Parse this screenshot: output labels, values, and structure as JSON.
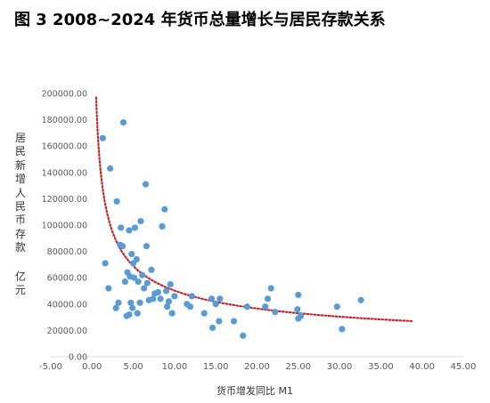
{
  "title": "图 3 2008~2024 年货币总量增长与居民存款关系",
  "chart_data": {
    "type": "scatter",
    "title": "图 3 2008~2024 年货币总量增长与居民存款关系",
    "xlabel": "货币增发同比 M1",
    "ylabel_parts": [
      "居民新增人民币存款",
      "亿元"
    ],
    "xlim": [
      -5,
      45
    ],
    "ylim": [
      0,
      200000
    ],
    "x_ticks": [
      "-5.00",
      "0.00",
      "5.00",
      "10.00",
      "15.00",
      "20.00",
      "25.00",
      "30.00",
      "35.00",
      "40.00",
      "45.00"
    ],
    "y_ticks": [
      "0.00",
      "20000.00",
      "40000.00",
      "60000.00",
      "80000.00",
      "100000.00",
      "120000.00",
      "140000.00",
      "160000.00",
      "180000.00",
      "200000.00"
    ],
    "grid": false,
    "legend": "none",
    "point_color": "#5b9bd5",
    "trend_color": "#c0282d",
    "trendline": {
      "type": "power",
      "style": "dotted",
      "x_range": [
        0.5,
        39
      ],
      "y_at_0_5": 197000,
      "y_at_39": 27000
    },
    "points": [
      {
        "x": 1.3,
        "y": 166000
      },
      {
        "x": 1.6,
        "y": 71000
      },
      {
        "x": 2.0,
        "y": 52000
      },
      {
        "x": 2.2,
        "y": 143000
      },
      {
        "x": 2.9,
        "y": 37000
      },
      {
        "x": 3.0,
        "y": 118000
      },
      {
        "x": 3.2,
        "y": 41000
      },
      {
        "x": 3.4,
        "y": 85000
      },
      {
        "x": 3.5,
        "y": 98000
      },
      {
        "x": 3.7,
        "y": 84000
      },
      {
        "x": 3.8,
        "y": 178000
      },
      {
        "x": 4.0,
        "y": 57000
      },
      {
        "x": 4.2,
        "y": 31000
      },
      {
        "x": 4.3,
        "y": 64000
      },
      {
        "x": 4.5,
        "y": 96000
      },
      {
        "x": 4.5,
        "y": 32000
      },
      {
        "x": 4.6,
        "y": 61000
      },
      {
        "x": 4.7,
        "y": 41000
      },
      {
        "x": 4.8,
        "y": 78000
      },
      {
        "x": 4.9,
        "y": 37000
      },
      {
        "x": 5.0,
        "y": 71000
      },
      {
        "x": 5.1,
        "y": 60000
      },
      {
        "x": 5.2,
        "y": 98000
      },
      {
        "x": 5.4,
        "y": 74000
      },
      {
        "x": 5.5,
        "y": 33000
      },
      {
        "x": 5.6,
        "y": 57000
      },
      {
        "x": 5.8,
        "y": 41000
      },
      {
        "x": 5.9,
        "y": 103000
      },
      {
        "x": 6.1,
        "y": 62000
      },
      {
        "x": 6.3,
        "y": 52000
      },
      {
        "x": 6.5,
        "y": 131000
      },
      {
        "x": 6.6,
        "y": 84000
      },
      {
        "x": 6.7,
        "y": 56000
      },
      {
        "x": 6.9,
        "y": 43000
      },
      {
        "x": 7.2,
        "y": 66000
      },
      {
        "x": 7.4,
        "y": 44000
      },
      {
        "x": 7.6,
        "y": 48000
      },
      {
        "x": 8.0,
        "y": 49000
      },
      {
        "x": 8.3,
        "y": 44000
      },
      {
        "x": 8.5,
        "y": 99000
      },
      {
        "x": 8.8,
        "y": 112000
      },
      {
        "x": 9.0,
        "y": 50000
      },
      {
        "x": 9.1,
        "y": 38000
      },
      {
        "x": 9.3,
        "y": 42000
      },
      {
        "x": 9.5,
        "y": 55000
      },
      {
        "x": 9.7,
        "y": 33000
      },
      {
        "x": 10.0,
        "y": 46000
      },
      {
        "x": 11.5,
        "y": 40000
      },
      {
        "x": 11.9,
        "y": 38000
      },
      {
        "x": 12.1,
        "y": 46000
      },
      {
        "x": 13.6,
        "y": 33000
      },
      {
        "x": 14.5,
        "y": 44000
      },
      {
        "x": 14.6,
        "y": 22000
      },
      {
        "x": 15.0,
        "y": 40000
      },
      {
        "x": 15.4,
        "y": 27000
      },
      {
        "x": 15.5,
        "y": 44000
      },
      {
        "x": 17.2,
        "y": 27000
      },
      {
        "x": 18.3,
        "y": 16000
      },
      {
        "x": 18.8,
        "y": 38000
      },
      {
        "x": 21.0,
        "y": 38000
      },
      {
        "x": 21.3,
        "y": 44000
      },
      {
        "x": 21.7,
        "y": 52000
      },
      {
        "x": 22.2,
        "y": 34000
      },
      {
        "x": 24.9,
        "y": 36000
      },
      {
        "x": 25.0,
        "y": 29000
      },
      {
        "x": 25.0,
        "y": 47000
      },
      {
        "x": 25.3,
        "y": 31000
      },
      {
        "x": 29.7,
        "y": 38000
      },
      {
        "x": 30.3,
        "y": 21000
      },
      {
        "x": 32.6,
        "y": 43000
      }
    ]
  }
}
